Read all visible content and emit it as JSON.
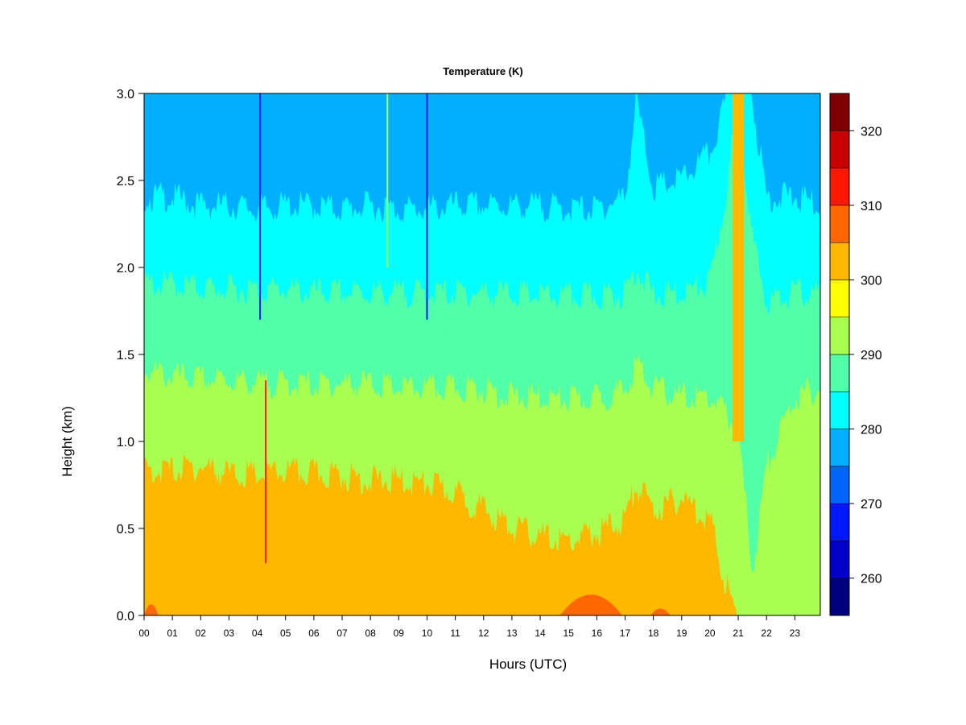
{
  "chart_data": {
    "type": "heatmap",
    "title": "Temperature (K)",
    "xlabel": "Hours (UTC)",
    "ylabel": "Height (km)",
    "x_ticks": [
      "00",
      "01",
      "02",
      "03",
      "04",
      "05",
      "06",
      "07",
      "08",
      "09",
      "10",
      "11",
      "12",
      "13",
      "14",
      "15",
      "16",
      "17",
      "18",
      "19",
      "20",
      "21",
      "22",
      "23"
    ],
    "y_ticks": [
      "0.0",
      "0.5",
      "1.0",
      "1.5",
      "2.0",
      "2.5",
      "3.0"
    ],
    "xlim": [
      0,
      23.9
    ],
    "ylim": [
      0,
      3.0
    ],
    "colorbar": {
      "range": [
        255,
        325
      ],
      "step": 5,
      "tick_labels": [
        "260",
        "270",
        "280",
        "290",
        "300",
        "310",
        "320"
      ],
      "colors": [
        "#00007f",
        "#0000c8",
        "#0018ff",
        "#0064ff",
        "#00b0ff",
        "#00ffff",
        "#50ffa8",
        "#a8ff50",
        "#ffff00",
        "#ffb800",
        "#ff6800",
        "#ff1800",
        "#c80000",
        "#7f0000"
      ]
    },
    "contour_boundaries_km": {
      "note_levels": "height (km) of the lower edge of each temperature band vs hour",
      "hours": [
        0,
        1,
        2,
        3,
        4,
        5,
        6,
        7,
        8,
        9,
        10,
        11,
        12,
        13,
        14,
        15,
        16,
        17,
        17.4,
        18,
        19,
        20,
        20.6,
        21,
        21.5,
        22,
        23,
        23.9
      ],
      "k300_top": [
        0.88,
        0.88,
        0.9,
        0.86,
        0.85,
        0.87,
        0.86,
        0.85,
        0.82,
        0.82,
        0.8,
        0.75,
        0.65,
        0.55,
        0.5,
        0.47,
        0.52,
        0.6,
        0.8,
        0.65,
        0.72,
        0.6,
        0.2,
        0.0,
        0.0,
        0.0,
        0.0,
        0.0
      ],
      "k290_top": [
        1.45,
        1.42,
        1.4,
        1.4,
        1.38,
        1.38,
        1.37,
        1.38,
        1.38,
        1.35,
        1.35,
        1.35,
        1.35,
        1.3,
        1.3,
        1.28,
        1.3,
        1.33,
        1.5,
        1.35,
        1.3,
        1.3,
        1.2,
        1.1,
        0.3,
        0.9,
        1.3,
        1.35
      ],
      "k285_top": [
        1.95,
        1.95,
        1.93,
        1.92,
        1.92,
        1.92,
        1.9,
        1.9,
        1.9,
        1.9,
        1.9,
        1.9,
        1.9,
        1.9,
        1.88,
        1.88,
        1.88,
        1.9,
        2.05,
        1.88,
        1.9,
        1.95,
        2.5,
        3.0,
        2.2,
        1.85,
        1.9,
        1.9
      ],
      "k280_top": [
        2.45,
        2.45,
        2.4,
        2.4,
        2.38,
        2.4,
        2.4,
        2.38,
        2.4,
        2.38,
        2.38,
        2.4,
        2.4,
        2.4,
        2.4,
        2.38,
        2.38,
        2.45,
        3.0,
        2.5,
        2.55,
        2.7,
        3.0,
        3.0,
        3.0,
        2.45,
        2.45,
        2.4
      ],
      "k275_top": [
        3.0,
        3.0,
        3.0,
        3.0,
        3.0,
        3.0,
        3.0,
        3.0,
        3.0,
        3.0,
        3.0,
        3.0,
        3.0,
        3.0,
        3.0,
        3.0,
        3.0,
        3.0,
        3.0,
        3.0,
        3.0,
        3.0,
        3.0,
        3.0,
        3.0,
        3.0,
        3.0,
        3.0
      ]
    },
    "warm_patches": [
      {
        "band": "305",
        "hours": [
          14.7,
          16.9
        ],
        "height_km": [
          0.0,
          0.15
        ]
      },
      {
        "band": "305",
        "hours": [
          0.0,
          0.5
        ],
        "height_km": [
          0.0,
          0.08
        ]
      },
      {
        "band": "305",
        "hours": [
          17.9,
          18.6
        ],
        "height_km": [
          0.0,
          0.05
        ]
      },
      {
        "band": "300",
        "hours": [
          20.8,
          21.2
        ],
        "height_km": [
          1.0,
          3.0
        ]
      }
    ],
    "spikes": [
      {
        "hour": 4.3,
        "height_km": [
          0.3,
          1.35
        ],
        "color": "#ff1800"
      },
      {
        "hour": 4.1,
        "height_km": [
          1.7,
          3.0
        ],
        "color": "#0018ff"
      },
      {
        "hour": 10.0,
        "height_km": [
          1.7,
          3.0
        ],
        "color": "#0018ff"
      },
      {
        "hour": 8.6,
        "height_km": [
          2.0,
          3.0
        ],
        "color": "#a8ff50"
      }
    ],
    "grid": false,
    "legend": "colorbar-right"
  }
}
